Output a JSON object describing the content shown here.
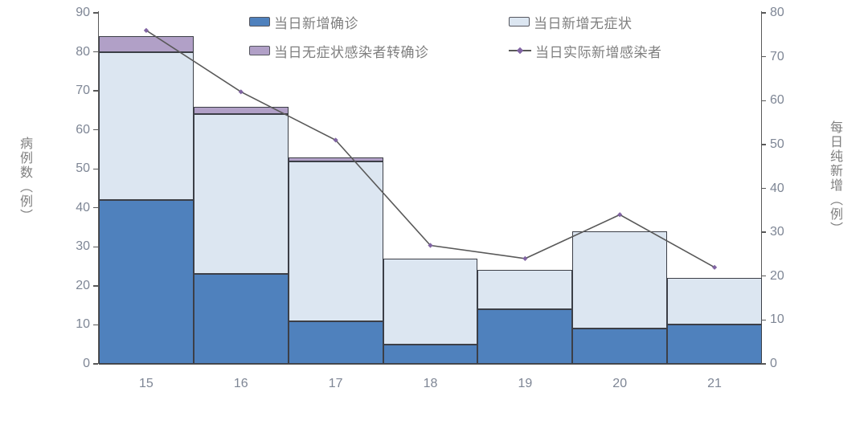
{
  "chart_data": {
    "type": "bar",
    "subtype": "stacked-bars-with-secondary-axis-line",
    "categories": [
      "15",
      "16",
      "17",
      "18",
      "19",
      "20",
      "21"
    ],
    "series": [
      {
        "name": "当日新增确诊",
        "color": "#4f81bd",
        "values": [
          42,
          23,
          11,
          5,
          14,
          9,
          10
        ]
      },
      {
        "name": "当日新增无症状",
        "color": "#dce6f1",
        "values": [
          38,
          41,
          41,
          22,
          10,
          25,
          12
        ]
      },
      {
        "name": "当日无症状感染者转确诊",
        "color": "#b1a0c7",
        "values": [
          4,
          2,
          1,
          0,
          0,
          0,
          0
        ]
      }
    ],
    "bar_totals": [
      84,
      66,
      53,
      27,
      24,
      34,
      22
    ],
    "line_series": {
      "name": "当日实际新增感染者",
      "axis": "right",
      "color": "#595959",
      "marker_color": "#8064a2",
      "values": [
        76,
        62,
        51,
        27,
        24,
        34,
        22
      ]
    },
    "left_axis": {
      "title": "病例数（例）",
      "min": 0,
      "max": 90,
      "step": 10,
      "tick_labels": [
        "90",
        "80",
        "70",
        "60",
        "50",
        "40",
        "30",
        "20",
        "10",
        "0"
      ]
    },
    "right_axis": {
      "title": "每日纯新增（例）",
      "min": 0,
      "max": 80,
      "step": 10,
      "tick_labels": [
        "80",
        "70",
        "60",
        "50",
        "40",
        "30",
        "20",
        "10",
        "0"
      ]
    },
    "legend": {
      "position": "top-inside",
      "items": [
        {
          "label": "当日新增确诊",
          "symbol": "box",
          "color": "#4f81bd"
        },
        {
          "label": "当日新增无症状",
          "symbol": "box",
          "color": "#dce6f1"
        },
        {
          "label": "当日无症状感染者转确诊",
          "symbol": "box",
          "color": "#b1a0c7"
        },
        {
          "label": "当日实际新增感染者",
          "symbol": "line",
          "color": "#595959",
          "marker_color": "#8064a2"
        }
      ]
    },
    "grid": false,
    "style": {
      "background": "#ffffff",
      "axis_color": "#595959",
      "segment_border_color": "#3c3f47",
      "tick_text_color": "#7e8695",
      "legend_text_color": "#7f7f7f"
    }
  }
}
